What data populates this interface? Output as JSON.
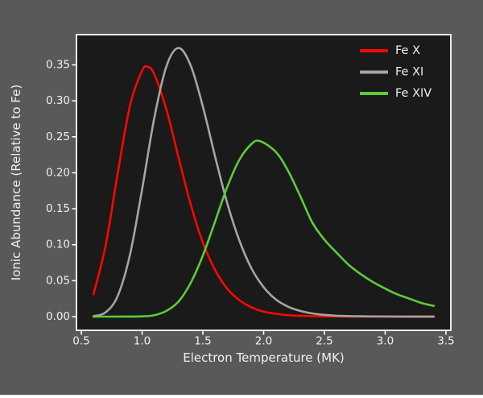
{
  "figure": {
    "background": "#595959",
    "plot_background": "#1a1a1a",
    "spine_color": "#ffffff",
    "text_color": "#f0f0f0"
  },
  "chart_data": {
    "type": "line",
    "title": "",
    "xlabel": "Electron Temperature (MK)",
    "ylabel": "Ionic Abundance (Relative to Fe)",
    "xlim": [
      0.46,
      3.54
    ],
    "ylim": [
      -0.019,
      0.392
    ],
    "xticks": [
      0.5,
      1.0,
      1.5,
      2.0,
      2.5,
      3.0,
      3.5
    ],
    "xtick_labels": [
      "0.5",
      "1.0",
      "1.5",
      "2.0",
      "2.5",
      "3.0",
      "3.5"
    ],
    "yticks": [
      0.0,
      0.05,
      0.1,
      0.15,
      0.2,
      0.25,
      0.3,
      0.35
    ],
    "ytick_labels": [
      "0.00",
      "0.05",
      "0.10",
      "0.15",
      "0.20",
      "0.25",
      "0.30",
      "0.35"
    ],
    "grid": false,
    "legend_position": "upper right",
    "line_width": 2.6,
    "series": [
      {
        "name": "Fe X",
        "color": "#f90800",
        "peak": {
          "x": 1.05,
          "y": 0.347
        },
        "x": [
          0.6,
          0.7,
          0.8,
          0.9,
          1.0,
          1.05,
          1.1,
          1.2,
          1.3,
          1.4,
          1.5,
          1.6,
          1.7,
          1.8,
          1.9,
          2.0,
          2.1,
          2.2,
          2.3,
          2.4,
          2.6,
          2.8,
          3.0,
          3.2,
          3.4
        ],
        "y": [
          0.031,
          0.099,
          0.2,
          0.293,
          0.342,
          0.347,
          0.337,
          0.288,
          0.221,
          0.156,
          0.103,
          0.065,
          0.039,
          0.023,
          0.013,
          0.007,
          0.004,
          0.002,
          0.0012,
          0.0007,
          0.0002,
          0.0001,
          0.0001,
          0.0,
          0.0
        ]
      },
      {
        "name": "Fe XI",
        "color": "#a5a5a5",
        "peak": {
          "x": 1.3,
          "y": 0.3735
        },
        "x": [
          0.6,
          0.7,
          0.8,
          0.9,
          1.0,
          1.1,
          1.2,
          1.3,
          1.4,
          1.5,
          1.6,
          1.7,
          1.8,
          1.9,
          2.0,
          2.1,
          2.2,
          2.3,
          2.4,
          2.5,
          2.6,
          2.8,
          3.0,
          3.2,
          3.4
        ],
        "y": [
          0.0006,
          0.006,
          0.029,
          0.086,
          0.177,
          0.276,
          0.348,
          0.3735,
          0.349,
          0.292,
          0.223,
          0.158,
          0.106,
          0.067,
          0.041,
          0.024,
          0.014,
          0.008,
          0.0045,
          0.0025,
          0.0013,
          0.0005,
          0.0002,
          0.0001,
          0.0001
        ]
      },
      {
        "name": "Fe XIV",
        "color": "#5ecb3a",
        "peak": {
          "x": 1.97,
          "y": 0.244
        },
        "x": [
          0.6,
          0.8,
          1.0,
          1.1,
          1.2,
          1.3,
          1.4,
          1.5,
          1.6,
          1.7,
          1.8,
          1.9,
          1.97,
          2.1,
          2.2,
          2.3,
          2.4,
          2.5,
          2.6,
          2.7,
          2.8,
          2.9,
          3.0,
          3.1,
          3.2,
          3.3,
          3.4
        ],
        "y": [
          0.0,
          0.0001,
          0.0004,
          0.002,
          0.008,
          0.021,
          0.047,
          0.085,
          0.132,
          0.18,
          0.218,
          0.24,
          0.244,
          0.229,
          0.203,
          0.168,
          0.131,
          0.107,
          0.089,
          0.072,
          0.059,
          0.048,
          0.039,
          0.031,
          0.025,
          0.019,
          0.015
        ]
      }
    ]
  }
}
